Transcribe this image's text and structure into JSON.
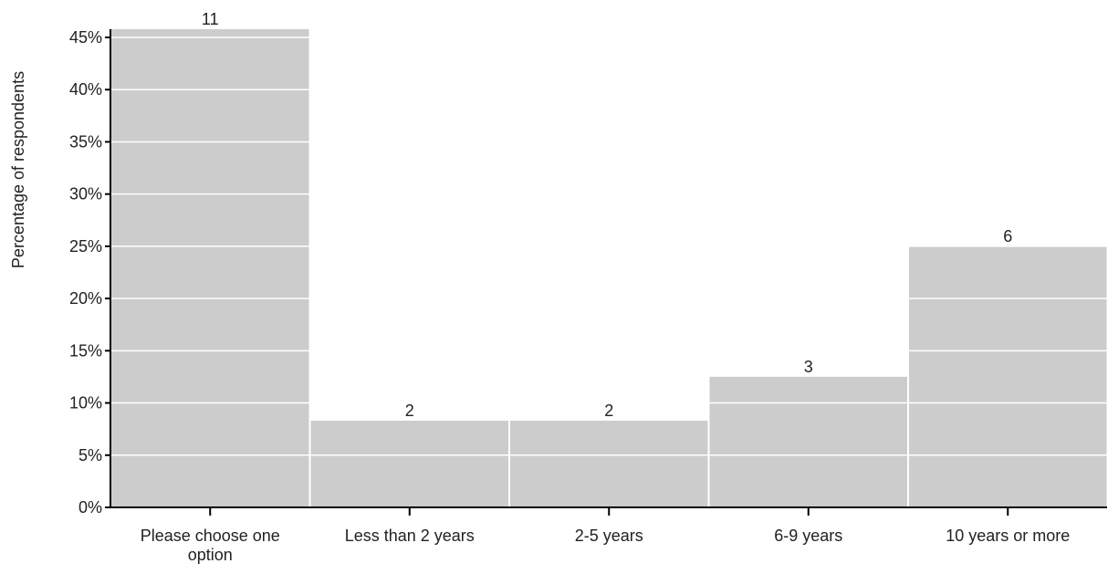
{
  "chart_data": {
    "type": "bar",
    "categories": [
      [
        "Please choose one",
        "option"
      ],
      [
        "Less than 2 years"
      ],
      [
        "2-5 years"
      ],
      [
        "6-9 years"
      ],
      [
        "10 years or more"
      ]
    ],
    "values": [
      45.8,
      8.3,
      8.3,
      12.5,
      25.0
    ],
    "data_labels": [
      "11",
      "2",
      "2",
      "3",
      "6"
    ],
    "ylabel": "Percentage of respondents",
    "xlabel": "",
    "ylim": [
      0,
      45
    ],
    "yticks": [
      0,
      5,
      10,
      15,
      20,
      25,
      30,
      35,
      40,
      45
    ],
    "ytick_labels": [
      "0%",
      "5%",
      "10%",
      "15%",
      "20%",
      "25%",
      "30%",
      "35%",
      "40%",
      "45%"
    ],
    "grid": true,
    "legend": "none",
    "colors": {
      "bar": "#cccccc",
      "gridline": "#ffffff",
      "axis": "#000000",
      "text": "#222222"
    }
  }
}
